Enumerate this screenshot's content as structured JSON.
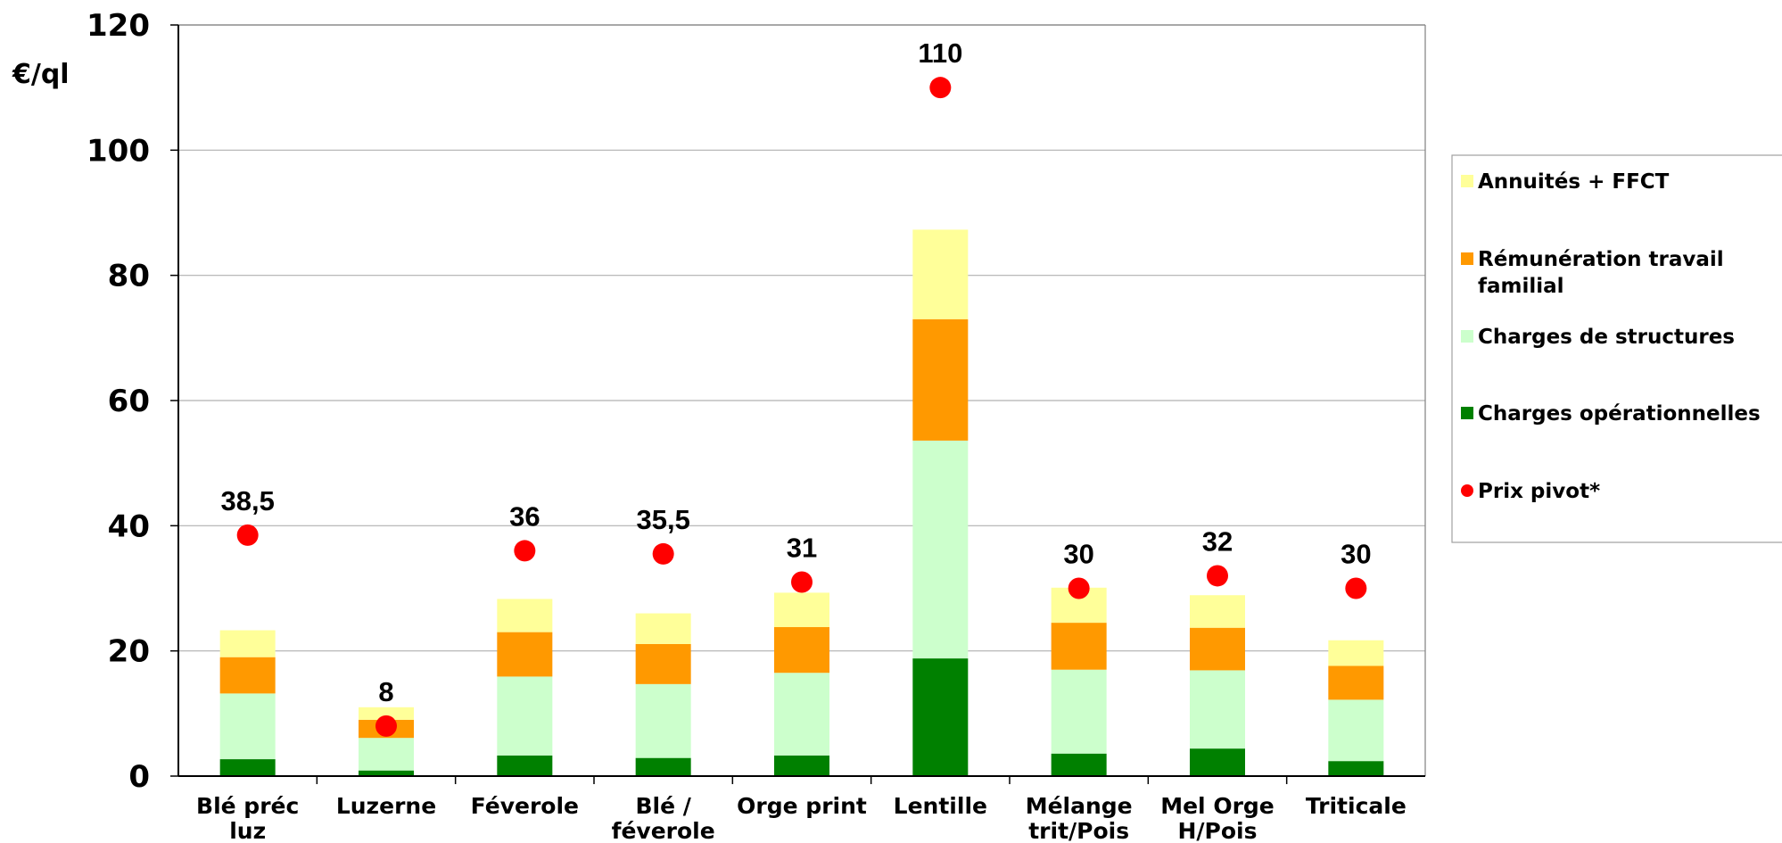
{
  "chart_data": {
    "type": "bar",
    "stacked": true,
    "ylabel": "€/ql",
    "ylim": [
      0,
      120
    ],
    "yticks": [
      "0",
      "20",
      "40",
      "60",
      "80",
      "100",
      "120"
    ],
    "grid": true,
    "legend_position": "right",
    "categories": [
      [
        "Blé préc",
        "luz"
      ],
      [
        "Luzerne"
      ],
      [
        "Féverole"
      ],
      [
        "Blé /",
        "féverole"
      ],
      [
        "Orge print"
      ],
      [
        "Lentille"
      ],
      [
        "Mélange",
        "trit/Pois"
      ],
      [
        "Mel Orge",
        "H/Pois"
      ],
      [
        "Triticale"
      ]
    ],
    "series": [
      {
        "name": "Charges opérationnelles",
        "color": "#008000",
        "values": [
          2.7,
          0.9,
          3.3,
          2.9,
          3.3,
          18.8,
          3.6,
          4.4,
          2.4
        ]
      },
      {
        "name": "Charges de structures",
        "color": "#CCFFCC",
        "values": [
          10.5,
          5.2,
          12.6,
          11.8,
          13.2,
          34.8,
          13.4,
          12.5,
          9.8
        ]
      },
      {
        "name": "Rémunération travail familial",
        "color": "#FF9900",
        "values": [
          5.8,
          2.9,
          7.1,
          6.4,
          7.3,
          19.4,
          7.5,
          6.8,
          5.4
        ]
      },
      {
        "name": "Annuités + FFCT",
        "color": "#FFFF99",
        "values": [
          4.3,
          2.0,
          5.3,
          4.9,
          5.5,
          14.3,
          5.6,
          5.2,
          4.1
        ]
      }
    ],
    "pivot": {
      "name": "Prix pivot*",
      "color": "#FF0000",
      "values": [
        38.5,
        8,
        36,
        35.5,
        31,
        110,
        30,
        32,
        30
      ],
      "labels": [
        "38,5",
        "8",
        "36",
        "35,5",
        "31",
        "110",
        "30",
        "32",
        "30"
      ]
    },
    "legend": [
      {
        "label": [
          "Annuités + FFCT"
        ],
        "color": "#FFFF99",
        "marker": "square"
      },
      {
        "label": [
          "Rémunération travail",
          "familial"
        ],
        "color": "#FF9900",
        "marker": "square"
      },
      {
        "label": [
          "Charges de structures"
        ],
        "color": "#CCFFCC",
        "marker": "square"
      },
      {
        "label": [
          "Charges opérationnelles"
        ],
        "color": "#008000",
        "marker": "square"
      },
      {
        "label": [
          "Prix pivot*"
        ],
        "color": "#FF0000",
        "marker": "circle"
      }
    ]
  }
}
